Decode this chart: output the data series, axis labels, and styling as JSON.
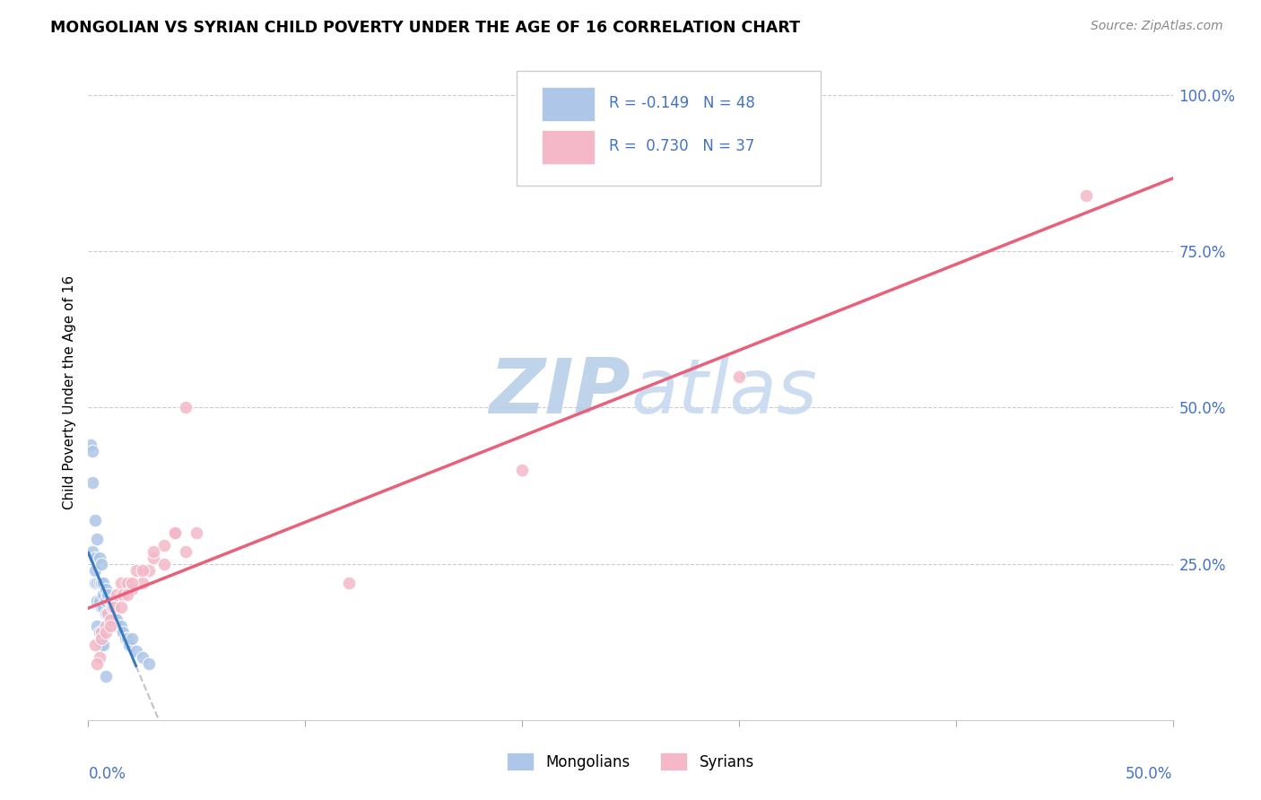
{
  "title": "MONGOLIAN VS SYRIAN CHILD POVERTY UNDER THE AGE OF 16 CORRELATION CHART",
  "source": "Source: ZipAtlas.com",
  "ylabel": "Child Poverty Under the Age of 16",
  "ytick_labels": [
    "100.0%",
    "75.0%",
    "50.0%",
    "25.0%"
  ],
  "ytick_values": [
    1.0,
    0.75,
    0.5,
    0.25
  ],
  "xlim": [
    0.0,
    0.5
  ],
  "ylim": [
    0.0,
    1.05
  ],
  "mongolian_color": "#aec6e8",
  "syrian_color": "#f4b8c8",
  "mongolian_line_color": "#3a7abf",
  "syrian_line_color": "#e8607a",
  "mongolian_R": -0.149,
  "mongolian_N": 48,
  "syrian_R": 0.73,
  "syrian_N": 37,
  "watermark": "ZIPatlas",
  "watermark_color": "#ccddf5",
  "legend_label_mongolian": "Mongolians",
  "legend_label_syrian": "Syrians",
  "mongolian_x": [
    0.001,
    0.002,
    0.002,
    0.003,
    0.003,
    0.003,
    0.004,
    0.004,
    0.004,
    0.005,
    0.005,
    0.005,
    0.006,
    0.006,
    0.006,
    0.007,
    0.007,
    0.007,
    0.008,
    0.008,
    0.008,
    0.009,
    0.009,
    0.01,
    0.01,
    0.011,
    0.011,
    0.012,
    0.012,
    0.013,
    0.014,
    0.015,
    0.016,
    0.017,
    0.018,
    0.019,
    0.02,
    0.022,
    0.025,
    0.028,
    0.002,
    0.003,
    0.004,
    0.005,
    0.006,
    0.006,
    0.007,
    0.008
  ],
  "mongolian_y": [
    0.44,
    0.43,
    0.27,
    0.26,
    0.24,
    0.22,
    0.29,
    0.22,
    0.19,
    0.26,
    0.22,
    0.19,
    0.25,
    0.22,
    0.18,
    0.22,
    0.2,
    0.18,
    0.21,
    0.19,
    0.17,
    0.2,
    0.17,
    0.19,
    0.16,
    0.18,
    0.15,
    0.17,
    0.15,
    0.16,
    0.15,
    0.15,
    0.14,
    0.13,
    0.13,
    0.12,
    0.13,
    0.11,
    0.1,
    0.09,
    0.38,
    0.32,
    0.15,
    0.14,
    0.13,
    0.12,
    0.12,
    0.07
  ],
  "syrian_x": [
    0.003,
    0.005,
    0.006,
    0.008,
    0.009,
    0.01,
    0.011,
    0.013,
    0.015,
    0.016,
    0.018,
    0.02,
    0.022,
    0.025,
    0.028,
    0.03,
    0.035,
    0.04,
    0.045,
    0.05,
    0.004,
    0.006,
    0.008,
    0.01,
    0.012,
    0.015,
    0.018,
    0.02,
    0.025,
    0.03,
    0.035,
    0.04,
    0.045,
    0.12,
    0.2,
    0.3,
    0.46
  ],
  "syrian_y": [
    0.12,
    0.1,
    0.14,
    0.15,
    0.17,
    0.16,
    0.18,
    0.2,
    0.22,
    0.2,
    0.22,
    0.21,
    0.24,
    0.22,
    0.24,
    0.26,
    0.28,
    0.3,
    0.27,
    0.3,
    0.09,
    0.13,
    0.14,
    0.15,
    0.18,
    0.18,
    0.2,
    0.22,
    0.24,
    0.27,
    0.25,
    0.3,
    0.5,
    0.22,
    0.4,
    0.55,
    0.84
  ]
}
